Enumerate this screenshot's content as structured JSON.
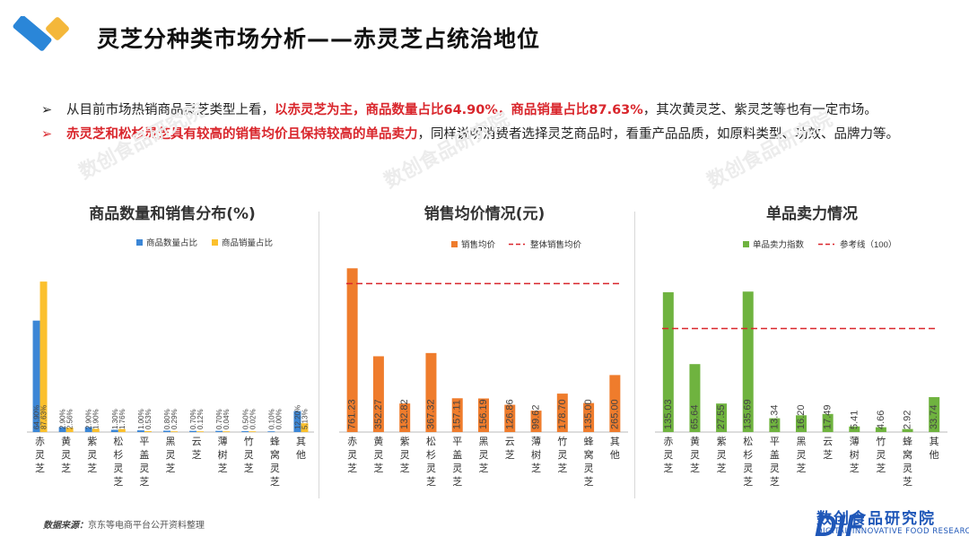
{
  "header": {
    "title": "灵芝分种类市场分析——赤灵芝占统治地位"
  },
  "bullets": [
    {
      "pre": "从目前市场热销商品灵芝类型上看，",
      "highlight": "以赤灵芝为主，商品数量占比64.90%，商品销量占比87.63%",
      "post": "，其次黄灵芝、紫灵芝等也有一定市场。"
    },
    {
      "pre": "",
      "highlight": "赤灵芝和松杉灵芝具有较高的销售均价且保持较高的单品卖力",
      "post": "，同样说明消费者选择灵芝商品时，看重产品品质，如原料类型、功效、品牌力等。"
    }
  ],
  "footer": {
    "source_label": "数据来源：",
    "source_text": "京东等电商平台公开资料整理",
    "brand_cn": "数创食品研究院",
    "brand_en": "DIGITAL INNOVATIVE FOOD RESEARCH",
    "brand_mark": "DIF"
  },
  "colors": {
    "blue": "#3b86d6",
    "yellow": "#fbc02d",
    "orange": "#ef7c2c",
    "green": "#6fb33f",
    "refline": "#d9262c",
    "accent_red": "#d9262c"
  },
  "chart_data": [
    {
      "type": "bar",
      "title": "商品数量和销售分布(%)",
      "categories": [
        "赤灵芝",
        "黄灵芝",
        "紫灵芝",
        "松杉灵芝",
        "平盖灵芝",
        "黑灵芝",
        "云芝",
        "薄树芝",
        "竹灵芝",
        "蜂窝灵芝",
        "其他"
      ],
      "series": [
        {
          "name": "商品数量占比",
          "color": "#3b86d6",
          "values": [
            64.9,
            2.9,
            2.9,
            1.3,
            1.0,
            0.8,
            0.7,
            0.7,
            0.5,
            0.1,
            12.2
          ],
          "labels": [
            "64.90%",
            "2.90%",
            "2.90%",
            "1.30%",
            "1.00%",
            "0.80%",
            "0.70%",
            "0.70%",
            "0.50%",
            "0.10%",
            "12.20%"
          ]
        },
        {
          "name": "商品销量占比",
          "color": "#fbc02d",
          "values": [
            87.63,
            2.56,
            1.9,
            1.76,
            0.53,
            0.29,
            0.12,
            0.04,
            0.02,
            0.0,
            5.13
          ],
          "labels": [
            "87.63%",
            "2.56%",
            "1.90%",
            "1.76%",
            "0.53%",
            "0.29%",
            "0.12%",
            "0.04%",
            "0.02%",
            "0.00%",
            "5.13%"
          ]
        }
      ],
      "ylim": [
        0,
        95
      ]
    },
    {
      "type": "bar",
      "title": "销售均价情况(元)",
      "categories": [
        "赤灵芝",
        "黄灵芝",
        "紫灵芝",
        "松杉灵芝",
        "平盖灵芝",
        "黑灵芝",
        "云芝",
        "薄树芝",
        "竹灵芝",
        "蜂窝灵芝",
        "其他"
      ],
      "series": [
        {
          "name": "销售均价",
          "color": "#ef7c2c",
          "values": [
            761.23,
            352.27,
            132.82,
            367.32,
            157.11,
            156.19,
            126.86,
            99.62,
            178.7,
            135.0,
            265.0
          ],
          "labels": [
            "761.23",
            "352.27",
            "132.82",
            "367.32",
            "157.11",
            "156.19",
            "126.86",
            "99.62",
            "178.70",
            "135.00",
            "265.00"
          ]
        }
      ],
      "reference": {
        "name": "整体销售均价",
        "value": 690
      },
      "ylim": [
        0,
        800
      ]
    },
    {
      "type": "bar",
      "title": "单品卖力情况",
      "categories": [
        "赤灵芝",
        "黄灵芝",
        "紫灵芝",
        "松杉灵芝",
        "平盖灵芝",
        "黑灵芝",
        "云芝",
        "薄树芝",
        "竹灵芝",
        "蜂窝灵芝",
        "其他"
      ],
      "series": [
        {
          "name": "单品卖力指数",
          "color": "#6fb33f",
          "values": [
            135.03,
            65.64,
            27.55,
            135.69,
            13.34,
            16.2,
            17.49,
            5.41,
            4.66,
            2.92,
            33.74
          ],
          "labels": [
            "135.03",
            "65.64",
            "27.55",
            "135.69",
            "13.34",
            "16.20",
            "17.49",
            "5.41",
            "4.66",
            "2.92",
            "33.74"
          ]
        }
      ],
      "reference": {
        "name": "参考线（100）",
        "value": 100
      },
      "ylim": [
        0,
        142
      ]
    }
  ]
}
